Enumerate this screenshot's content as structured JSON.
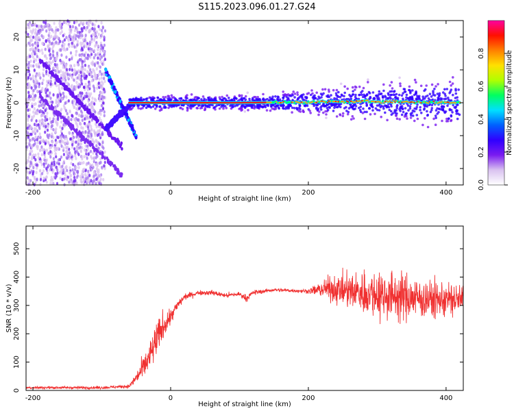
{
  "title": "S115.2023.096.01.27.G24",
  "chart_data": [
    {
      "type": "heatmap",
      "xlabel": "Height of straight line (km)",
      "ylabel": "Frequency (Hz)",
      "xlim": [
        -210,
        425
      ],
      "ylim": [
        -25,
        25
      ],
      "xticks": [
        -200,
        0,
        200,
        400
      ],
      "yticks": [
        -20,
        -10,
        0,
        10,
        20
      ],
      "colorbar": {
        "label": "Normalized spectral amplitude",
        "range": [
          0,
          1
        ],
        "ticks": [
          "0.0",
          "0.2",
          "0.4",
          "0.6",
          "0.8"
        ],
        "colormap": [
          "#ffffff",
          "#d9c2f0",
          "#7a1cf0",
          "#3000ff",
          "#0060ff",
          "#00e0ff",
          "#00ff60",
          "#b0ff00",
          "#ffe000",
          "#ff8000",
          "#ff1000",
          "#ff00a0"
        ]
      },
      "signal_line": {
        "x": [
          -60,
          0,
          100,
          200,
          300,
          420
        ],
        "freq": [
          0,
          0,
          0,
          0.2,
          0.4,
          0
        ]
      }
    },
    {
      "type": "line",
      "xlabel": "Height of straight line (km)",
      "ylabel": "SNR (10 * v/v)",
      "xlim": [
        -210,
        425
      ],
      "ylim": [
        0,
        580
      ],
      "xticks": [
        -200,
        0,
        200,
        400
      ],
      "yticks": [
        0,
        100,
        200,
        300,
        400,
        500
      ],
      "color": "#f03030",
      "envelope": {
        "x": [
          -210,
          -100,
          -60,
          -45,
          -30,
          -20,
          -10,
          0,
          10,
          20,
          40,
          60,
          80,
          100,
          110,
          120,
          150,
          200,
          230,
          260,
          300,
          340,
          380,
          425
        ],
        "mean": [
          10,
          10,
          15,
          60,
          120,
          180,
          230,
          260,
          300,
          330,
          345,
          345,
          335,
          340,
          325,
          345,
          355,
          350,
          360,
          350,
          340,
          330,
          320,
          320
        ],
        "spread": [
          8,
          8,
          10,
          50,
          90,
          110,
          80,
          50,
          30,
          20,
          15,
          15,
          15,
          15,
          20,
          15,
          10,
          12,
          70,
          110,
          150,
          140,
          110,
          100
        ]
      }
    }
  ]
}
